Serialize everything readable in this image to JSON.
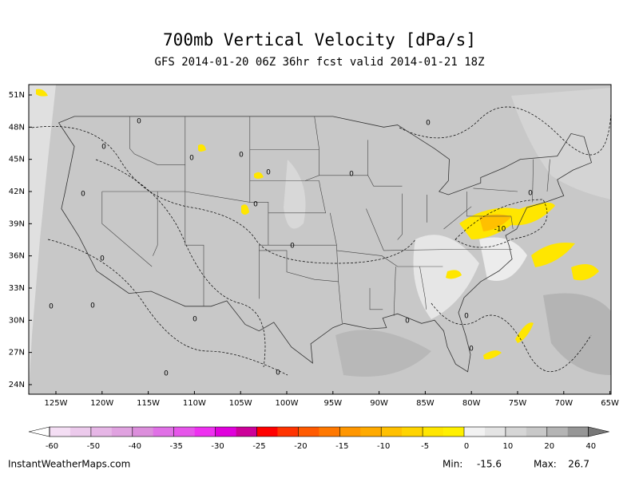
{
  "title": "700mb Vertical Velocity [dPa/s]",
  "subtitle": "GFS 2014-01-20 06Z 36hr fcst valid 2014-01-21 18Z",
  "map": {
    "lat_labels": [
      "51N",
      "48N",
      "45N",
      "42N",
      "39N",
      "36N",
      "33N",
      "30N",
      "27N",
      "24N"
    ],
    "lon_labels": [
      "125W",
      "120W",
      "115W",
      "110W",
      "105W",
      "100W",
      "95W",
      "90W",
      "85W",
      "80W",
      "75W",
      "70W",
      "65W"
    ],
    "contour_labels": [
      "0",
      "0",
      "0",
      "0",
      "0",
      "0",
      "0",
      "0",
      "0",
      "0",
      "0",
      "0",
      "0",
      "0",
      "0",
      "0",
      "0",
      "0",
      "0",
      "0",
      "-10"
    ]
  },
  "colorbar": {
    "ticks": [
      -60,
      -50,
      -40,
      -35,
      -30,
      -25,
      -20,
      -15,
      -10,
      -5,
      0,
      10,
      20,
      40
    ],
    "colors": [
      "#f4def4",
      "#eccaec",
      "#e6b6e6",
      "#e0a2e0",
      "#dc8edc",
      "#e070e6",
      "#e655ea",
      "#ee30f0",
      "#e000dc",
      "#cc0099",
      "#ff0000",
      "#ff3300",
      "#ff5a00",
      "#ff7800",
      "#ff9600",
      "#ffaa00",
      "#ffc000",
      "#ffd400",
      "#ffe600",
      "#fff000",
      "#f2f2f2",
      "#e4e4e4",
      "#d6d6d6",
      "#c8c8c8",
      "#b4b4b4",
      "#969696"
    ]
  },
  "footer": {
    "site": "InstantWeatherMaps.com",
    "min_label": "Min:",
    "min": -15.6,
    "max_label": "Max:",
    "max": 26.7
  }
}
